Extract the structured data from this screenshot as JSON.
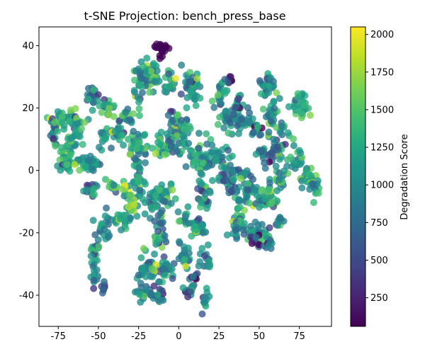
{
  "chart_data": {
    "type": "scatter",
    "title": "t-SNE Projection: bench_press_base",
    "xlabel": "",
    "ylabel": "",
    "xlim": [
      -87,
      95
    ],
    "ylim": [
      -50,
      46
    ],
    "xticks": [
      -75,
      -50,
      -25,
      0,
      25,
      50,
      75
    ],
    "yticks": [
      -40,
      -20,
      0,
      20,
      40
    ],
    "grid": false,
    "colorbar": {
      "label": "Degradation Score",
      "range": [
        60,
        2050
      ],
      "ticks": [
        250,
        500,
        750,
        1000,
        1250,
        1500,
        1750,
        2000
      ],
      "colormap": "viridis"
    },
    "clusters": [
      {
        "cx": -11,
        "cy": 39,
        "rx": 4,
        "ry": 2,
        "n": 20,
        "v": 80,
        "sv": 30
      },
      {
        "cx": -18,
        "cy": 30,
        "rx": 5,
        "ry": 4,
        "n": 45,
        "v": 1150,
        "sv": 300
      },
      {
        "cx": -25,
        "cy": 28,
        "rx": 3,
        "ry": 6,
        "n": 25,
        "v": 1100,
        "sv": 300
      },
      {
        "cx": 8,
        "cy": 27,
        "rx": 5,
        "ry": 5,
        "n": 40,
        "v": 1050,
        "sv": 300
      },
      {
        "cx": -5,
        "cy": 27,
        "rx": 3,
        "ry": 4,
        "n": 20,
        "v": 1150,
        "sv": 300
      },
      {
        "cx": 32,
        "cy": 29,
        "rx": 2,
        "ry": 2,
        "n": 8,
        "v": 200,
        "sv": 80
      },
      {
        "cx": 27,
        "cy": 25,
        "rx": 3,
        "ry": 3,
        "n": 20,
        "v": 1050,
        "sv": 300
      },
      {
        "cx": -53,
        "cy": 24,
        "rx": 3,
        "ry": 3,
        "n": 20,
        "v": 700,
        "sv": 300
      },
      {
        "cx": -45,
        "cy": 20,
        "rx": 4,
        "ry": 2,
        "n": 20,
        "v": 1150,
        "sv": 300
      },
      {
        "cx": -72,
        "cy": 17,
        "rx": 8,
        "ry": 3,
        "n": 40,
        "v": 1250,
        "sv": 400
      },
      {
        "cx": -78,
        "cy": 12,
        "rx": 2,
        "ry": 4,
        "n": 20,
        "v": 900,
        "sv": 400
      },
      {
        "cx": -63,
        "cy": 14,
        "rx": 3,
        "ry": 3,
        "n": 15,
        "v": 1200,
        "sv": 300
      },
      {
        "cx": -70,
        "cy": 6,
        "rx": 4,
        "ry": 3,
        "n": 25,
        "v": 1350,
        "sv": 300
      },
      {
        "cx": -33,
        "cy": 18,
        "rx": 6,
        "ry": 2,
        "n": 20,
        "v": 1150,
        "sv": 300
      },
      {
        "cx": -40,
        "cy": 12,
        "rx": 6,
        "ry": 2,
        "n": 25,
        "v": 1000,
        "sv": 300
      },
      {
        "cx": -27,
        "cy": 8,
        "rx": 6,
        "ry": 4,
        "n": 35,
        "v": 1100,
        "sv": 300
      },
      {
        "cx": -55,
        "cy": 2,
        "rx": 8,
        "ry": 2,
        "n": 35,
        "v": 1100,
        "sv": 300
      },
      {
        "cx": -70,
        "cy": 2,
        "rx": 5,
        "ry": 2,
        "n": 20,
        "v": 1250,
        "sv": 300
      },
      {
        "cx": -48,
        "cy": 10,
        "rx": 3,
        "ry": 2,
        "n": 10,
        "v": 1150,
        "sv": 300
      },
      {
        "cx": -3,
        "cy": 16,
        "rx": 3,
        "ry": 6,
        "n": 25,
        "v": 1050,
        "sv": 300
      },
      {
        "cx": 3,
        "cy": 13,
        "rx": 3,
        "ry": 5,
        "n": 20,
        "v": 1000,
        "sv": 300
      },
      {
        "cx": -10,
        "cy": 8,
        "rx": 6,
        "ry": 3,
        "n": 25,
        "v": 1100,
        "sv": 300
      },
      {
        "cx": 1,
        "cy": 7,
        "rx": 6,
        "ry": 2,
        "n": 20,
        "v": 1050,
        "sv": 300
      },
      {
        "cx": 30,
        "cy": 17,
        "rx": 6,
        "ry": 4,
        "n": 30,
        "v": 950,
        "sv": 300
      },
      {
        "cx": 40,
        "cy": 16,
        "rx": 6,
        "ry": 3,
        "n": 25,
        "v": 1000,
        "sv": 300
      },
      {
        "cx": 48,
        "cy": 13,
        "rx": 3,
        "ry": 2,
        "n": 12,
        "v": 700,
        "sv": 300
      },
      {
        "cx": 55,
        "cy": 28,
        "rx": 4,
        "ry": 3,
        "n": 25,
        "v": 1000,
        "sv": 300
      },
      {
        "cx": 58,
        "cy": 18,
        "rx": 3,
        "ry": 7,
        "n": 30,
        "v": 1000,
        "sv": 300
      },
      {
        "cx": 37,
        "cy": 21,
        "rx": 3,
        "ry": 3,
        "n": 12,
        "v": 900,
        "sv": 300
      },
      {
        "cx": 77,
        "cy": 21,
        "rx": 5,
        "ry": 4,
        "n": 30,
        "v": 1250,
        "sv": 200
      },
      {
        "cx": 65,
        "cy": 12,
        "rx": 4,
        "ry": 3,
        "n": 15,
        "v": 1000,
        "sv": 300
      },
      {
        "cx": 60,
        "cy": 6,
        "rx": 4,
        "ry": 3,
        "n": 20,
        "v": 1050,
        "sv": 300
      },
      {
        "cx": 52,
        "cy": 5,
        "rx": 3,
        "ry": 3,
        "n": 15,
        "v": 900,
        "sv": 300
      },
      {
        "cx": 73,
        "cy": 3,
        "rx": 4,
        "ry": 3,
        "n": 20,
        "v": 1100,
        "sv": 300
      },
      {
        "cx": 80,
        "cy": -2,
        "rx": 4,
        "ry": 3,
        "n": 25,
        "v": 1300,
        "sv": 250
      },
      {
        "cx": 84,
        "cy": -6,
        "rx": 3,
        "ry": 3,
        "n": 15,
        "v": 1100,
        "sv": 300
      },
      {
        "cx": 64,
        "cy": -3,
        "rx": 5,
        "ry": 3,
        "n": 20,
        "v": 1050,
        "sv": 300
      },
      {
        "cx": 14,
        "cy": 3,
        "rx": 6,
        "ry": 5,
        "n": 40,
        "v": 1050,
        "sv": 300
      },
      {
        "cx": 24,
        "cy": 4,
        "rx": 6,
        "ry": 3,
        "n": 30,
        "v": 1000,
        "sv": 300
      },
      {
        "cx": 29,
        "cy": -1,
        "rx": 6,
        "ry": 3,
        "n": 30,
        "v": 950,
        "sv": 300
      },
      {
        "cx": 34,
        "cy": -6,
        "rx": 3,
        "ry": 3,
        "n": 15,
        "v": 900,
        "sv": 300
      },
      {
        "cx": 45,
        "cy": -6,
        "rx": 5,
        "ry": 2,
        "n": 20,
        "v": 1050,
        "sv": 300
      },
      {
        "cx": 50,
        "cy": -10,
        "rx": 6,
        "ry": 3,
        "n": 25,
        "v": 1100,
        "sv": 350
      },
      {
        "cx": 58,
        "cy": -9,
        "rx": 4,
        "ry": 3,
        "n": 15,
        "v": 1100,
        "sv": 300
      },
      {
        "cx": 37,
        "cy": -14,
        "rx": 3,
        "ry": 4,
        "n": 15,
        "v": 1000,
        "sv": 300
      },
      {
        "cx": 38,
        "cy": -19,
        "rx": 8,
        "ry": 2,
        "n": 30,
        "v": 1000,
        "sv": 300
      },
      {
        "cx": 52,
        "cy": -20,
        "rx": 5,
        "ry": 2,
        "n": 20,
        "v": 1000,
        "sv": 300
      },
      {
        "cx": 48,
        "cy": -23,
        "rx": 3,
        "ry": 2,
        "n": 10,
        "v": 500,
        "sv": 300
      },
      {
        "cx": 56,
        "cy": -23,
        "rx": 3,
        "ry": 2,
        "n": 12,
        "v": 900,
        "sv": 300
      },
      {
        "cx": 16,
        "cy": -8,
        "rx": 4,
        "ry": 6,
        "n": 25,
        "v": 1100,
        "sv": 300
      },
      {
        "cx": 12,
        "cy": -18,
        "rx": 6,
        "ry": 3,
        "n": 25,
        "v": 1050,
        "sv": 300
      },
      {
        "cx": 17,
        "cy": -28,
        "rx": 3,
        "ry": 4,
        "n": 15,
        "v": 1050,
        "sv": 300
      },
      {
        "cx": 4,
        "cy": -28,
        "rx": 3,
        "ry": 4,
        "n": 20,
        "v": 1050,
        "sv": 300
      },
      {
        "cx": -8,
        "cy": -32,
        "rx": 4,
        "ry": 4,
        "n": 25,
        "v": 1000,
        "sv": 300
      },
      {
        "cx": -20,
        "cy": -31,
        "rx": 6,
        "ry": 4,
        "n": 30,
        "v": 1100,
        "sv": 300
      },
      {
        "cx": -22,
        "cy": -39,
        "rx": 5,
        "ry": 2,
        "n": 20,
        "v": 1000,
        "sv": 300
      },
      {
        "cx": -12,
        "cy": -41,
        "rx": 4,
        "ry": 3,
        "n": 15,
        "v": 700,
        "sv": 350
      },
      {
        "cx": 7,
        "cy": -38,
        "rx": 3,
        "ry": 4,
        "n": 15,
        "v": 800,
        "sv": 300
      },
      {
        "cx": 10,
        "cy": -34,
        "rx": 2,
        "ry": 1,
        "n": 6,
        "v": 400,
        "sv": 200
      },
      {
        "cx": 16,
        "cy": -41,
        "rx": 3,
        "ry": 3,
        "n": 12,
        "v": 1000,
        "sv": 300
      },
      {
        "cx": -12,
        "cy": -20,
        "rx": 4,
        "ry": 5,
        "n": 25,
        "v": 1150,
        "sv": 300
      },
      {
        "cx": -15,
        "cy": -10,
        "rx": 5,
        "ry": 4,
        "n": 30,
        "v": 1100,
        "sv": 350
      },
      {
        "cx": -8,
        "cy": -8,
        "rx": 4,
        "ry": 3,
        "n": 20,
        "v": 1200,
        "sv": 300
      },
      {
        "cx": -25,
        "cy": -2,
        "rx": 5,
        "ry": 4,
        "n": 30,
        "v": 1050,
        "sv": 300
      },
      {
        "cx": -30,
        "cy": -10,
        "rx": 4,
        "ry": 3,
        "n": 15,
        "v": 1200,
        "sv": 350
      },
      {
        "cx": -35,
        "cy": -16,
        "rx": 6,
        "ry": 3,
        "n": 25,
        "v": 1050,
        "sv": 300
      },
      {
        "cx": -48,
        "cy": -20,
        "rx": 4,
        "ry": 4,
        "n": 20,
        "v": 1050,
        "sv": 300
      },
      {
        "cx": -52,
        "cy": -26,
        "rx": 3,
        "ry": 4,
        "n": 15,
        "v": 1100,
        "sv": 300
      },
      {
        "cx": -52,
        "cy": -34,
        "rx": 2,
        "ry": 3,
        "n": 12,
        "v": 900,
        "sv": 300
      },
      {
        "cx": -47,
        "cy": -38,
        "rx": 2,
        "ry": 2,
        "n": 8,
        "v": 600,
        "sv": 150
      },
      {
        "cx": -55,
        "cy": -6,
        "rx": 4,
        "ry": 3,
        "n": 15,
        "v": 900,
        "sv": 300
      },
      {
        "cx": -43,
        "cy": -5,
        "rx": 4,
        "ry": 2,
        "n": 12,
        "v": 1150,
        "sv": 300
      },
      {
        "cx": -34,
        "cy": -4,
        "rx": 2,
        "ry": 2,
        "n": 6,
        "v": 1650,
        "sv": 150
      },
      {
        "cx": -29,
        "cy": -12,
        "rx": 2,
        "ry": 2,
        "n": 5,
        "v": 1750,
        "sv": 150
      },
      {
        "cx": 5,
        "cy": -16,
        "rx": 4,
        "ry": 3,
        "n": 15,
        "v": 1100,
        "sv": 300
      },
      {
        "cx": 42,
        "cy": -2,
        "rx": 4,
        "ry": 2,
        "n": 12,
        "v": 1000,
        "sv": 300
      },
      {
        "cx": 63,
        "cy": -16,
        "rx": 3,
        "ry": 2,
        "n": 10,
        "v": 1050,
        "sv": 300
      },
      {
        "cx": -65,
        "cy": 9,
        "rx": 4,
        "ry": 2,
        "n": 12,
        "v": 1100,
        "sv": 300
      }
    ]
  }
}
